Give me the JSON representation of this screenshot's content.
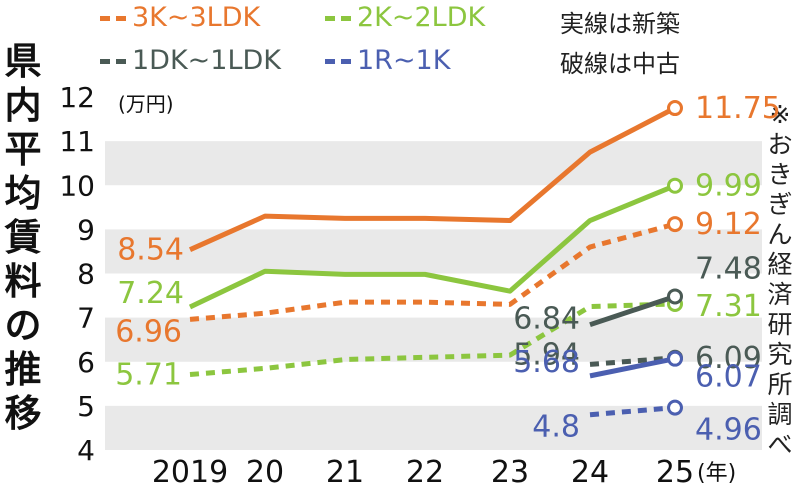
{
  "title": "県内平均賃料の推移",
  "source": "※おきぎん経済研究所調べ",
  "notes": {
    "solid": "実線は新築",
    "dashed": "破線は中古"
  },
  "colors": {
    "3K~3LDK": "#e8772e",
    "2K~2LDK": "#8cc63f",
    "1DK~1LDK": "#4a5a55",
    "1R~1K": "#4b5fb0",
    "text": "#111111",
    "band": "#e9e9e9"
  },
  "chart_data": {
    "type": "line",
    "title": "県内平均賃料の推移",
    "xlabel": "(年)",
    "ylabel": "(万円)",
    "ylim": [
      4,
      12
    ],
    "yticks": [
      "4",
      "5",
      "6",
      "7",
      "8",
      "9",
      "10",
      "11",
      "12"
    ],
    "x": [
      "2019",
      "20",
      "21",
      "22",
      "23",
      "24",
      "25"
    ],
    "legend_position": "top",
    "series": [
      {
        "name": "3K~3LDK",
        "style": "solid",
        "color": "#e8772e",
        "values": [
          8.54,
          9.3,
          9.25,
          9.25,
          9.2,
          10.75,
          11.75
        ],
        "labels": {
          "first": "8.54",
          "last": "11.75"
        }
      },
      {
        "name": "3K~3LDK",
        "style": "dashed",
        "color": "#e8772e",
        "values": [
          6.96,
          7.1,
          7.35,
          7.35,
          7.3,
          8.6,
          9.12
        ],
        "labels": {
          "first": "6.96",
          "last": "9.12"
        }
      },
      {
        "name": "2K~2LDK",
        "style": "solid",
        "color": "#8cc63f",
        "values": [
          7.24,
          8.05,
          7.98,
          7.98,
          7.6,
          9.2,
          9.99
        ],
        "labels": {
          "first": "7.24",
          "last": "9.99"
        }
      },
      {
        "name": "2K~2LDK",
        "style": "dashed",
        "color": "#8cc63f",
        "values": [
          5.71,
          5.85,
          6.05,
          6.1,
          6.15,
          7.25,
          7.31
        ],
        "labels": {
          "first": "5.71",
          "last": "7.31"
        }
      },
      {
        "name": "1DK~1LDK",
        "style": "solid",
        "color": "#4a5a55",
        "x": [
          "24",
          "25"
        ],
        "values": [
          6.84,
          7.48
        ],
        "labels": {
          "first": "6.84",
          "last": "7.48"
        }
      },
      {
        "name": "1DK~1LDK",
        "style": "dashed",
        "color": "#4a5a55",
        "x": [
          "24",
          "25"
        ],
        "values": [
          5.94,
          6.09
        ],
        "labels": {
          "first": "5.94",
          "last": "6.09"
        }
      },
      {
        "name": "1R~1K",
        "style": "solid",
        "color": "#4b5fb0",
        "x": [
          "24",
          "25"
        ],
        "values": [
          5.68,
          6.07
        ],
        "labels": {
          "first": "5.68",
          "last": "6.07"
        }
      },
      {
        "name": "1R~1K",
        "style": "dashed",
        "color": "#4b5fb0",
        "x": [
          "24",
          "25"
        ],
        "values": [
          4.8,
          4.96
        ],
        "labels": {
          "first": "4.8",
          "last": "4.96"
        }
      }
    ],
    "legend": [
      "3K~3LDK",
      "2K~2LDK",
      "1DK~1LDK",
      "1R~1K"
    ]
  }
}
